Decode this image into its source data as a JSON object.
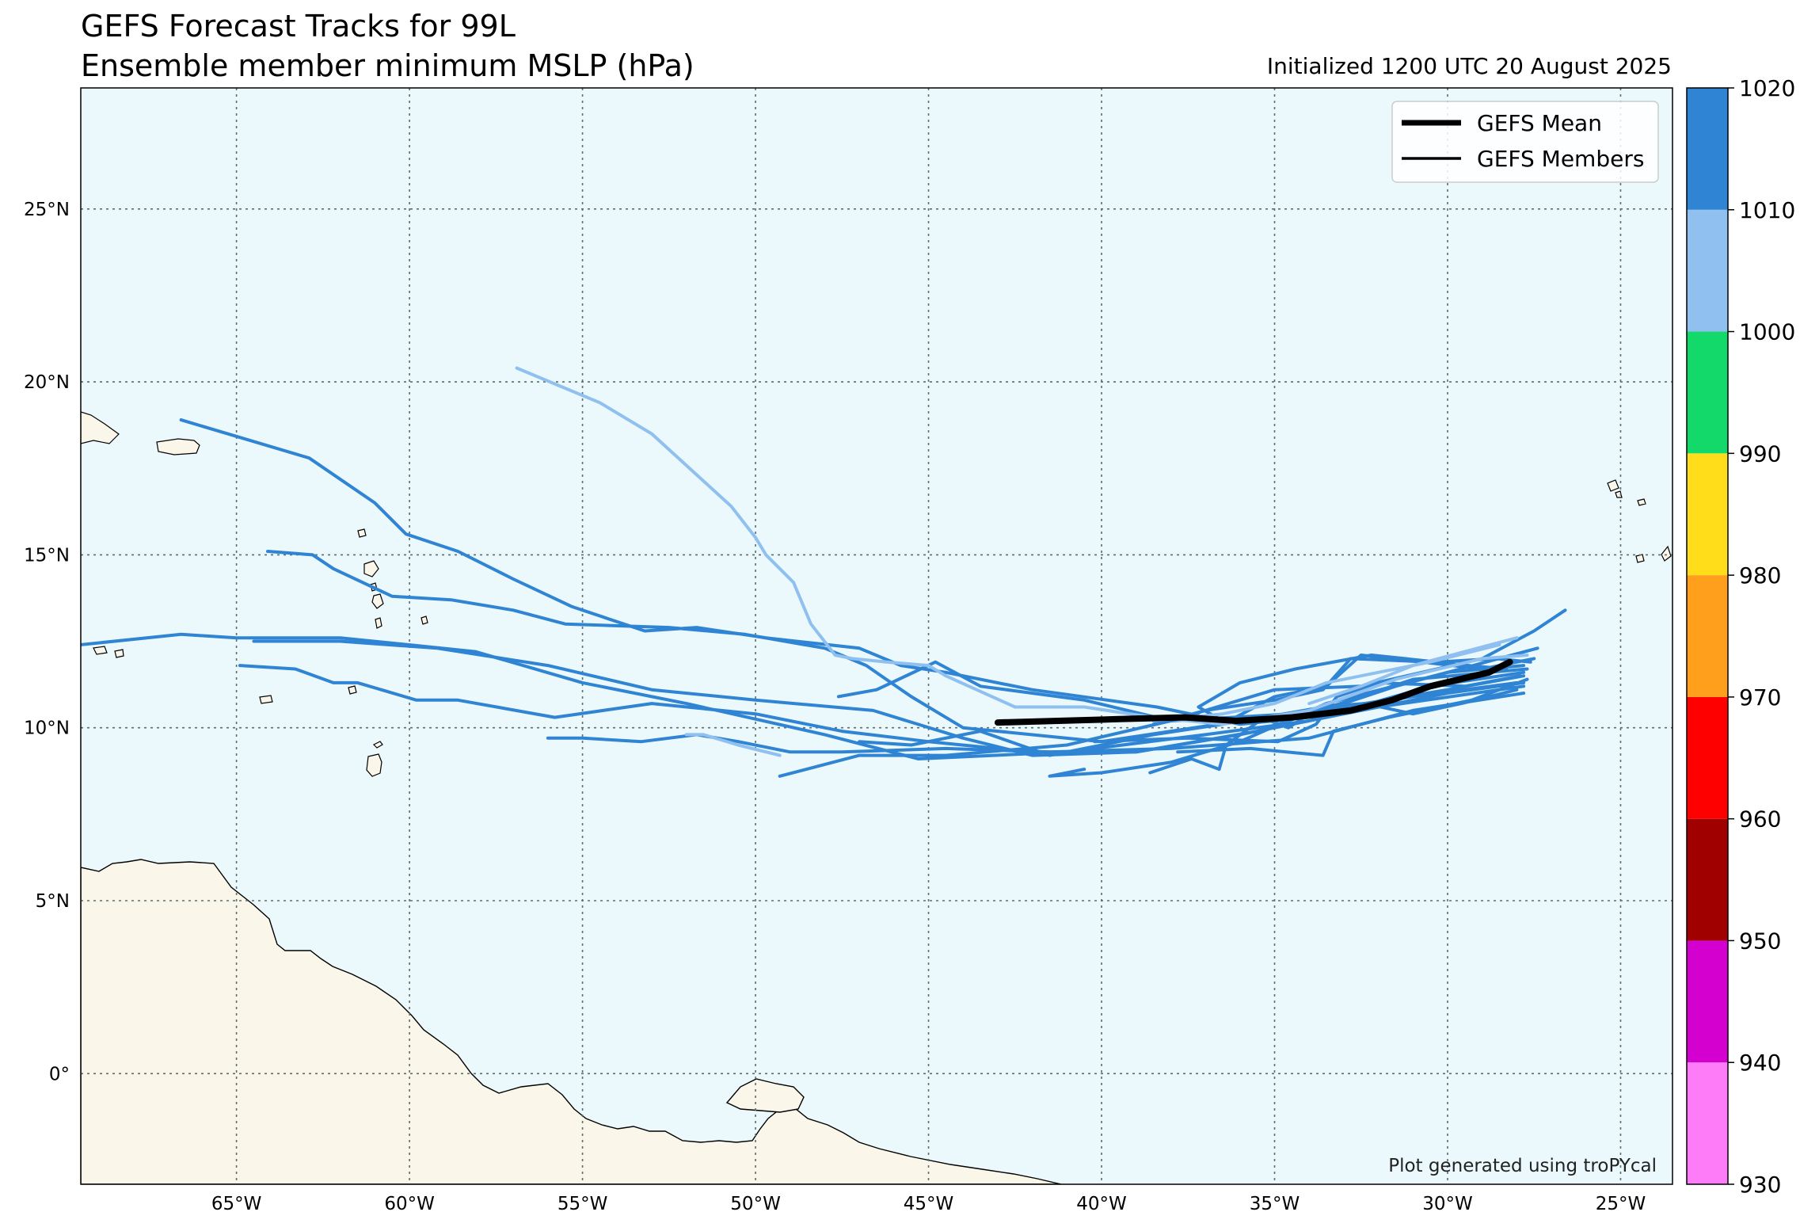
{
  "title_line1": "GEFS Forecast Tracks for 99L",
  "title_line2": "Ensemble member minimum MSLP (hPa)",
  "initialized_label": "Initialized 1200 UTC 20 August 2025",
  "credit": "Plot generated using troPYcal",
  "colors": {
    "ocean": "#ebf9fc",
    "land": "#fbf6ea",
    "coast": "#000000",
    "grid": "#5b6e6e",
    "track_1010_1020": "#2f84d4",
    "track_1000_1010": "#8fc0ef",
    "mean": "#000000"
  },
  "legend": {
    "location": "top-right",
    "entries": [
      {
        "label": "GEFS Mean",
        "color": "#000000",
        "style": "thick"
      },
      {
        "label": "GEFS Members",
        "color": "#000000",
        "style": "thin"
      }
    ]
  },
  "chart_data": {
    "type": "map-tracks",
    "lon_range": [
      -69.5,
      -23.5
    ],
    "lat_range": [
      -3.2,
      28.5
    ],
    "lon_ticks": [
      -65,
      -60,
      -55,
      -50,
      -45,
      -40,
      -35,
      -30,
      -25
    ],
    "lon_tick_labels": [
      "65°W",
      "60°W",
      "55°W",
      "50°W",
      "45°W",
      "40°W",
      "35°W",
      "30°W",
      "25°W"
    ],
    "lat_ticks": [
      0,
      5,
      10,
      15,
      20,
      25
    ],
    "lat_tick_labels": [
      "0°",
      "5°N",
      "10°N",
      "15°N",
      "20°N",
      "25°N"
    ],
    "grid": true,
    "colorbar": {
      "label_values": [
        "930",
        "940",
        "950",
        "960",
        "970",
        "980",
        "990",
        "1000",
        "1010",
        "1020"
      ],
      "bins": [
        {
          "lo": 930,
          "hi": 940,
          "color": "#ff7cf9"
        },
        {
          "lo": 940,
          "hi": 950,
          "color": "#d400d0"
        },
        {
          "lo": 950,
          "hi": 960,
          "color": "#a00000"
        },
        {
          "lo": 960,
          "hi": 970,
          "color": "#ff0000"
        },
        {
          "lo": 970,
          "hi": 980,
          "color": "#ff9f1b"
        },
        {
          "lo": 980,
          "hi": 990,
          "color": "#ffdd1b"
        },
        {
          "lo": 990,
          "hi": 1000,
          "color": "#12d96a"
        },
        {
          "lo": 1000,
          "hi": 1010,
          "color": "#8fc0ef"
        },
        {
          "lo": 1010,
          "hi": 1020,
          "color": "#2f84d4"
        }
      ]
    },
    "mean_track": {
      "name": "GEFS Mean",
      "points": [
        [
          -28.2,
          11.9
        ],
        [
          -28.8,
          11.6
        ],
        [
          -30.5,
          11.2
        ],
        [
          -31.6,
          10.8
        ],
        [
          -32.8,
          10.5
        ],
        [
          -34.5,
          10.3
        ],
        [
          -36.1,
          10.2
        ],
        [
          -37.6,
          10.3
        ],
        [
          -39.5,
          10.25
        ],
        [
          -43.0,
          10.15
        ]
      ]
    },
    "member_tracks": [
      {
        "mslp": 1012,
        "points": [
          [
            -27.8,
            11.5
          ],
          [
            -30.0,
            11.1
          ],
          [
            -33.0,
            10.6
          ],
          [
            -36.0,
            10.2
          ],
          [
            -40.0,
            9.6
          ],
          [
            -44.0,
            10.0
          ],
          [
            -45.5,
            10.9
          ],
          [
            -46.8,
            11.8
          ],
          [
            -48.0,
            12.3
          ],
          [
            -50.3,
            12.7
          ],
          [
            -52.5,
            12.9
          ],
          [
            -55.5,
            13.0
          ],
          [
            -57.0,
            13.4
          ],
          [
            -58.8,
            13.7
          ],
          [
            -60.5,
            13.8
          ],
          [
            -62.2,
            14.6
          ],
          [
            -62.8,
            15.0
          ],
          [
            -64.1,
            15.1
          ]
        ]
      },
      {
        "mslp": 1012,
        "points": [
          [
            -27.8,
            11.3
          ],
          [
            -30.0,
            11.0
          ],
          [
            -33.0,
            10.4
          ],
          [
            -36.0,
            10.1
          ],
          [
            -38.4,
            10.6
          ],
          [
            -42.0,
            11.1
          ],
          [
            -44.5,
            11.6
          ],
          [
            -45.8,
            11.8
          ],
          [
            -47.0,
            12.3
          ],
          [
            -49.7,
            12.6
          ],
          [
            -51.7,
            12.9
          ],
          [
            -53.2,
            12.8
          ],
          [
            -55.3,
            13.5
          ],
          [
            -57.0,
            14.3
          ],
          [
            -58.6,
            15.1
          ],
          [
            -60.1,
            15.6
          ],
          [
            -61.0,
            16.5
          ],
          [
            -62.9,
            17.8
          ],
          [
            -66.6,
            18.9
          ]
        ]
      },
      {
        "mslp": 1011,
        "points": [
          [
            -27.8,
            11.6
          ],
          [
            -30.5,
            11.2
          ],
          [
            -34.0,
            10.2
          ],
          [
            -37.0,
            9.8
          ],
          [
            -41.0,
            9.3
          ],
          [
            -45.3,
            9.1
          ],
          [
            -48.0,
            9.8
          ],
          [
            -52.0,
            10.7
          ],
          [
            -55.0,
            11.3
          ],
          [
            -58.1,
            12.2
          ],
          [
            -62.0,
            12.6
          ],
          [
            -65.0,
            12.6
          ],
          [
            -66.6,
            12.7
          ],
          [
            -69.5,
            12.4
          ]
        ]
      },
      {
        "mslp": 1011,
        "points": [
          [
            -27.7,
            11.7
          ],
          [
            -31.0,
            11.4
          ],
          [
            -35.5,
            9.9
          ],
          [
            -39.0,
            9.3
          ],
          [
            -42.0,
            9.2
          ],
          [
            -44.0,
            9.7
          ],
          [
            -46.6,
            10.5
          ],
          [
            -50.0,
            10.8
          ],
          [
            -53.0,
            11.1
          ],
          [
            -56.0,
            11.8
          ],
          [
            -59.2,
            12.3
          ],
          [
            -62.0,
            12.5
          ],
          [
            -64.5,
            12.5
          ]
        ]
      },
      {
        "mslp": 1011,
        "points": [
          [
            -27.8,
            11.2
          ],
          [
            -32.0,
            10.6
          ],
          [
            -36.0,
            9.8
          ],
          [
            -39.0,
            9.3
          ],
          [
            -42.0,
            9.3
          ],
          [
            -45.0,
            9.6
          ],
          [
            -47.5,
            9.9
          ],
          [
            -50.0,
            10.4
          ],
          [
            -53.0,
            10.7
          ],
          [
            -55.8,
            10.3
          ],
          [
            -58.6,
            10.8
          ],
          [
            -59.8,
            10.8
          ],
          [
            -61.5,
            11.3
          ],
          [
            -62.2,
            11.3
          ],
          [
            -63.3,
            11.7
          ],
          [
            -64.9,
            11.8
          ]
        ]
      },
      {
        "mslp": 1012,
        "points": [
          [
            -27.8,
            11.0
          ],
          [
            -31.0,
            10.5
          ],
          [
            -34.0,
            9.7
          ],
          [
            -38.0,
            9.4
          ],
          [
            -41.5,
            9.3
          ],
          [
            -44.5,
            9.4
          ],
          [
            -47.5,
            9.3
          ],
          [
            -49.0,
            9.3
          ],
          [
            -50.5,
            9.6
          ],
          [
            -51.7,
            9.8
          ],
          [
            -53.3,
            9.6
          ],
          [
            -55.0,
            9.7
          ],
          [
            -56.0,
            9.7
          ]
        ]
      },
      {
        "mslp": 1012,
        "points": [
          [
            -28.0,
            11.3
          ],
          [
            -31.0,
            10.9
          ],
          [
            -34.5,
            10.4
          ],
          [
            -38.0,
            10.2
          ],
          [
            -41.0,
            9.5
          ],
          [
            -44.5,
            9.2
          ],
          [
            -47.0,
            9.2
          ],
          [
            -49.3,
            8.6
          ]
        ]
      },
      {
        "mslp": 1011,
        "points": [
          [
            -26.6,
            13.4
          ],
          [
            -27.5,
            12.8
          ],
          [
            -29.0,
            12.0
          ],
          [
            -32.5,
            11.2
          ],
          [
            -35.0,
            11.1
          ],
          [
            -38.0,
            10.2
          ],
          [
            -40.5,
            10.8
          ],
          [
            -43.5,
            11.2
          ],
          [
            -44.8,
            11.9
          ],
          [
            -46.5,
            11.1
          ],
          [
            -47.6,
            10.9
          ]
        ]
      },
      {
        "mslp": 1012,
        "points": [
          [
            -27.4,
            12.3
          ],
          [
            -30.0,
            11.6
          ],
          [
            -33.5,
            10.7
          ],
          [
            -36.0,
            9.6
          ],
          [
            -38.0,
            9.0
          ],
          [
            -40.0,
            8.7
          ],
          [
            -41.5,
            8.6
          ],
          [
            -40.5,
            8.8
          ]
        ]
      },
      {
        "mslp": 1012,
        "points": [
          [
            -27.5,
            12.0
          ],
          [
            -29.0,
            11.7
          ],
          [
            -32.5,
            12.1
          ],
          [
            -33.5,
            11.2
          ],
          [
            -35.0,
            10.9
          ],
          [
            -36.5,
            10.1
          ],
          [
            -38.5,
            9.8
          ],
          [
            -41.5,
            9.2
          ],
          [
            -43.5,
            9.9
          ],
          [
            -45.5,
            9.5
          ],
          [
            -47.0,
            9.6
          ]
        ]
      },
      {
        "mslp": 1012,
        "points": [
          [
            -27.8,
            11.8
          ],
          [
            -30.0,
            11.6
          ],
          [
            -31.5,
            11.2
          ],
          [
            -33.0,
            10.7
          ],
          [
            -35.3,
            10.3
          ],
          [
            -36.4,
            9.5
          ],
          [
            -36.6,
            8.8
          ],
          [
            -37.4,
            9.1
          ],
          [
            -38.6,
            8.7
          ]
        ]
      },
      {
        "mslp": 1012,
        "points": [
          [
            -27.9,
            11.5
          ],
          [
            -29.5,
            11.2
          ],
          [
            -32.0,
            11.3
          ],
          [
            -33.2,
            10.9
          ],
          [
            -33.8,
            10.1
          ],
          [
            -34.9,
            9.6
          ],
          [
            -37.5,
            9.7
          ],
          [
            -40.2,
            9.6
          ]
        ]
      },
      {
        "mslp": 1012,
        "points": [
          [
            -28.3,
            11.7
          ],
          [
            -30.5,
            11.9
          ],
          [
            -32.8,
            12.0
          ],
          [
            -33.6,
            11.1
          ],
          [
            -35.0,
            10.8
          ],
          [
            -37.0,
            10.5
          ],
          [
            -38.5,
            10.1
          ]
        ]
      },
      {
        "mslp": 1012,
        "points": [
          [
            -27.7,
            11.4
          ],
          [
            -29.3,
            10.8
          ],
          [
            -31.7,
            10.3
          ],
          [
            -33.3,
            9.9
          ],
          [
            -33.6,
            9.2
          ],
          [
            -35.7,
            9.4
          ],
          [
            -37.8,
            9.3
          ]
        ]
      },
      {
        "mslp": 1012,
        "points": [
          [
            -27.6,
            11.9
          ],
          [
            -28.6,
            12.0
          ],
          [
            -30.3,
            11.9
          ],
          [
            -32.2,
            12.1
          ],
          [
            -34.4,
            11.7
          ],
          [
            -36.0,
            11.3
          ],
          [
            -37.2,
            10.6
          ],
          [
            -36.5,
            10.2
          ]
        ]
      },
      {
        "mslp": 1012,
        "points": [
          [
            -28.0,
            11.1
          ],
          [
            -29.6,
            10.7
          ],
          [
            -31.0,
            10.4
          ],
          [
            -32.4,
            10.7
          ],
          [
            -33.7,
            10.6
          ],
          [
            -34.6,
            10.0
          ],
          [
            -35.4,
            10.3
          ]
        ]
      },
      {
        "mslp": 1005,
        "points": [
          [
            -27.7,
            12.1
          ],
          [
            -29.0,
            12.0
          ],
          [
            -31.5,
            11.4
          ],
          [
            -34.0,
            10.5
          ],
          [
            -36.5,
            10.1
          ],
          [
            -38.5,
            10.3
          ],
          [
            -40.5,
            10.6
          ],
          [
            -42.5,
            10.6
          ],
          [
            -44.5,
            11.5
          ],
          [
            -45.0,
            11.8
          ],
          [
            -46.2,
            11.9
          ],
          [
            -47.2,
            12.0
          ],
          [
            -47.7,
            12.1
          ],
          [
            -48.4,
            13.0
          ],
          [
            -48.9,
            14.2
          ],
          [
            -49.7,
            15.0
          ],
          [
            -50.0,
            15.5
          ],
          [
            -50.7,
            16.4
          ],
          [
            -53.0,
            18.5
          ],
          [
            -54.5,
            19.4
          ],
          [
            -56.9,
            20.4
          ]
        ]
      },
      {
        "mslp": 1005,
        "points": [
          [
            -28.5,
            12.4
          ],
          [
            -30.5,
            11.9
          ],
          [
            -32.0,
            11.6
          ],
          [
            -33.5,
            11.3
          ],
          [
            -35.0,
            10.7
          ],
          [
            -36.5,
            10.4
          ],
          [
            -38.5,
            10.2
          ]
        ]
      },
      {
        "mslp": 1005,
        "points": [
          [
            -49.3,
            9.2
          ],
          [
            -50.5,
            9.5
          ],
          [
            -51.5,
            9.8
          ],
          [
            -52.0,
            9.8
          ]
        ]
      },
      {
        "mslp": 1005,
        "points": [
          [
            -28.0,
            12.6
          ],
          [
            -29.5,
            12.2
          ],
          [
            -31.0,
            11.8
          ],
          [
            -32.5,
            11.2
          ],
          [
            -34.0,
            10.7
          ]
        ]
      }
    ]
  }
}
